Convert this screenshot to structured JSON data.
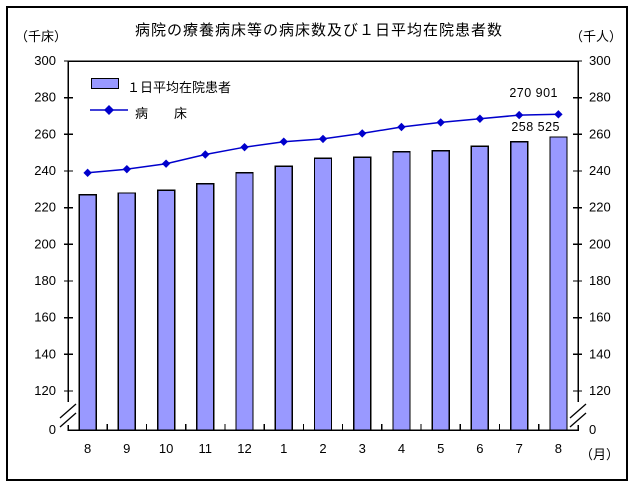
{
  "title": "病院の療養病床等の病床数及び１日平均在院患者数",
  "left_axis_unit": "（千床）",
  "right_axis_unit": "（千人）",
  "x_axis_unit": "（月）",
  "legend": {
    "bar_label": "１日平均在院患者",
    "line_label": "病　　床"
  },
  "annotations": {
    "line_last_value": "270 901",
    "bar_last_value": "258 525"
  },
  "colors": {
    "bar_fill": "#9999FF",
    "bar_border": "#000000",
    "line": "#0000CC",
    "axis": "#000000",
    "background": "#FFFFFF"
  },
  "chart_data": {
    "type": "bar",
    "subtype": "bar+line combo, dual axis, broken value axis",
    "title": "病院の療養病床等の病床数及び１日平均在院患者数",
    "categories": [
      "8",
      "9",
      "10",
      "11",
      "12",
      "1",
      "2",
      "3",
      "4",
      "5",
      "6",
      "7",
      "8"
    ],
    "x_unit_label": "（月）",
    "series": [
      {
        "name": "１日平均在院患者",
        "type": "bar",
        "axis": "right",
        "unit": "千人",
        "values": [
          227,
          228,
          229.5,
          233,
          239,
          242.5,
          247,
          247.5,
          250.5,
          251,
          253.5,
          256,
          258.525
        ]
      },
      {
        "name": "病床",
        "type": "line",
        "marker": "diamond",
        "axis": "left",
        "unit": "千床",
        "values": [
          239,
          241,
          244,
          249,
          253,
          256,
          257.5,
          260.5,
          264,
          266.5,
          268.5,
          270.5,
          270.901
        ]
      }
    ],
    "y_ticks": [
      300,
      280,
      260,
      240,
      220,
      200,
      180,
      160,
      140,
      120,
      0
    ],
    "ylim_display": [
      120,
      300
    ],
    "axis_break": true,
    "left_axis_title": "（千床）",
    "right_axis_title": "（千人）",
    "grid": false,
    "legend_position": "top-left",
    "point_labels": [
      {
        "series": "病床",
        "category_index": 12,
        "text": "270 901"
      },
      {
        "series": "１日平均在院患者",
        "category_index": 12,
        "text": "258 525"
      }
    ]
  }
}
